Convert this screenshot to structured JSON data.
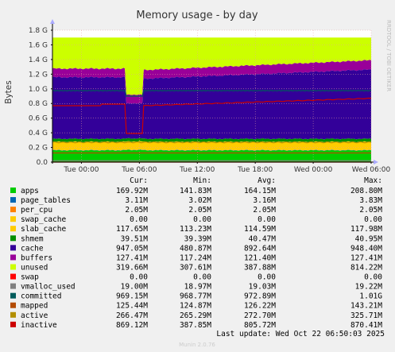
{
  "chart_data": {
    "type": "area",
    "title": "Memory usage - by day",
    "ylabel": "Bytes",
    "side_label": "RRDTOOL / TOBI OETIKER",
    "ylim": [
      0,
      1.8
    ],
    "y_unit": "GB",
    "yticks": [
      "0.0",
      "0.2 G",
      "0.4 G",
      "0.6 G",
      "0.8 G",
      "1.0 G",
      "1.2 G",
      "1.4 G",
      "1.6 G",
      "1.8 G"
    ],
    "yticks_values": [
      0,
      0.2,
      0.4,
      0.6,
      0.8,
      1.0,
      1.2,
      1.4,
      1.6,
      1.8
    ],
    "x_range_hours": [
      0,
      33
    ],
    "xticks": [
      {
        "label": "Tue 00:00",
        "hour": 3
      },
      {
        "label": "Tue 06:00",
        "hour": 9
      },
      {
        "label": "Tue 12:00",
        "hour": 15
      },
      {
        "label": "Tue 18:00",
        "hour": 21
      },
      {
        "label": "Wed 00:00",
        "hour": 27
      },
      {
        "label": "Wed 06:00",
        "hour": 33
      }
    ],
    "legend_headers": [
      "Cur:",
      "Min:",
      "Avg:",
      "Max:"
    ],
    "series": [
      {
        "name": "apps",
        "color": "#00cc00",
        "cur": "169.92M",
        "min": "141.83M",
        "avg": "164.15M",
        "max": "208.80M"
      },
      {
        "name": "page_tables",
        "color": "#0066b3",
        "cur": "3.11M",
        "min": "3.02M",
        "avg": "3.16M",
        "max": "3.83M"
      },
      {
        "name": "per_cpu",
        "color": "#ff8000",
        "cur": "2.05M",
        "min": "2.05M",
        "avg": "2.05M",
        "max": "2.05M"
      },
      {
        "name": "swap_cache",
        "color": "#ffcc00",
        "cur": "0.00",
        "min": "0.00",
        "avg": "0.00",
        "max": "0.00"
      },
      {
        "name": "slab_cache",
        "color": "#ffcc00",
        "cur": "117.65M",
        "min": "113.23M",
        "avg": "114.59M",
        "max": "117.98M"
      },
      {
        "name": "shmem",
        "color": "#008f00",
        "cur": "39.51M",
        "min": "39.39M",
        "avg": "40.47M",
        "max": "40.95M"
      },
      {
        "name": "cache",
        "color": "#330099",
        "cur": "947.05M",
        "min": "480.87M",
        "avg": "892.64M",
        "max": "948.40M"
      },
      {
        "name": "buffers",
        "color": "#990099",
        "cur": "127.41M",
        "min": "117.24M",
        "avg": "121.40M",
        "max": "127.41M"
      },
      {
        "name": "unused",
        "color": "#ccff00",
        "cur": "319.66M",
        "min": "307.61M",
        "avg": "387.88M",
        "max": "814.22M"
      },
      {
        "name": "swap",
        "color": "#ff0000",
        "cur": "0.00",
        "min": "0.00",
        "avg": "0.00",
        "max": "0.00"
      },
      {
        "name": "vmalloc_used",
        "color": "#808080",
        "cur": "19.00M",
        "min": "18.97M",
        "avg": "19.03M",
        "max": "19.22M"
      },
      {
        "name": "committed",
        "color": "#005b5b",
        "cur": "969.15M",
        "min": "968.77M",
        "avg": "972.89M",
        "max": "1.01G"
      },
      {
        "name": "mapped",
        "color": "#b34b00",
        "cur": "125.44M",
        "min": "124.87M",
        "avg": "126.22M",
        "max": "143.21M"
      },
      {
        "name": "active",
        "color": "#b38f00",
        "cur": "266.47M",
        "min": "265.29M",
        "avg": "272.70M",
        "max": "325.71M"
      },
      {
        "name": "inactive",
        "color": "#cc0000",
        "cur": "869.12M",
        "min": "387.85M",
        "avg": "805.72M",
        "max": "870.41M"
      }
    ],
    "last_update": "Last update: Wed Oct 22 06:50:03 2025",
    "footer": "Munin 2.0.76"
  }
}
